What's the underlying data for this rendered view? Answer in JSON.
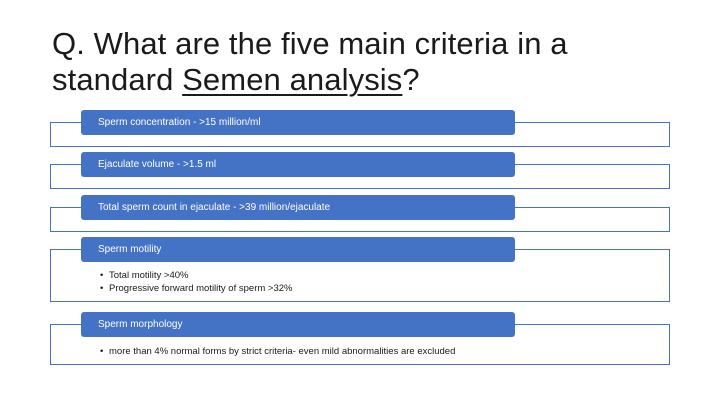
{
  "title": {
    "prefix": "Q. What are the five main criteria in a standard ",
    "underlined": "Semen analysis",
    "suffix": "?"
  },
  "criteria": [
    {
      "label": "Sperm concentration - >15 million/ml",
      "bullets": []
    },
    {
      "label": "Ejaculate volume - >1.5 ml",
      "bullets": []
    },
    {
      "label": "Total sperm count in ejaculate - >39 million/ejaculate",
      "bullets": []
    },
    {
      "label": "Sperm motility",
      "bullets": [
        "Total motility >40%",
        "Progressive forward motility of sperm >32%"
      ]
    },
    {
      "label": "Sperm morphology",
      "bullets": [
        "more than 4% normal forms by strict criteria- even mild abnormalities are excluded"
      ]
    }
  ],
  "colors": {
    "accent": "#4472c4",
    "text": "#1a1a1a",
    "background": "#ffffff"
  }
}
